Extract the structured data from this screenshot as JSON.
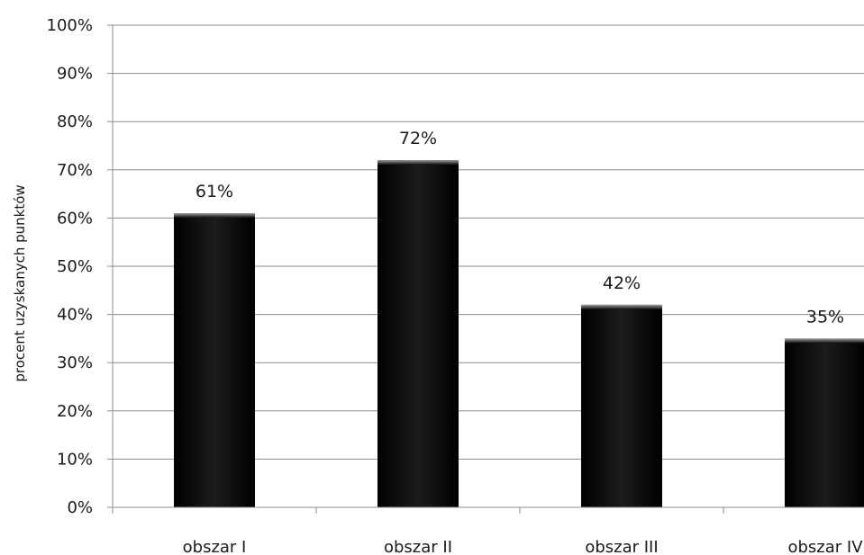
{
  "chart_data": {
    "type": "bar",
    "categories": [
      "obszar I",
      "obszar II",
      "obszar III",
      "obszar IV"
    ],
    "values": [
      61,
      72,
      42,
      35
    ],
    "data_labels": [
      "61%",
      "72%",
      "42%",
      "35%"
    ],
    "title": "",
    "xlabel": "",
    "ylabel": "procent uzyskanych punktów",
    "ylim": [
      0,
      100
    ],
    "yticks": [
      "0%",
      "10%",
      "20%",
      "30%",
      "40%",
      "50%",
      "60%",
      "70%",
      "80%",
      "90%",
      "100%"
    ],
    "grid": true,
    "legend": "none",
    "colors": {
      "bar": "#0a0a0a",
      "grid": "#8c8c8c",
      "text": "#1a1a1a"
    }
  }
}
